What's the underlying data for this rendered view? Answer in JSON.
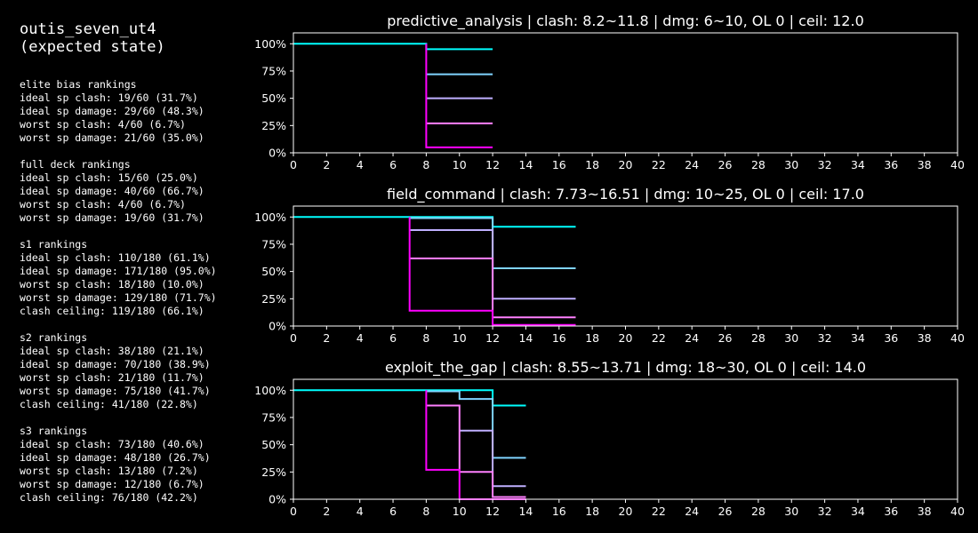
{
  "header": {
    "title_line1": "outis_seven_ut4",
    "title_line2": "(expected state)"
  },
  "stats": [
    {
      "heading": "elite bias rankings",
      "lines": [
        "ideal sp clash: 19/60 (31.7%)",
        "ideal sp damage: 29/60 (48.3%)",
        "worst sp clash: 4/60 (6.7%)",
        "worst sp damage: 21/60 (35.0%)"
      ]
    },
    {
      "heading": "full deck rankings",
      "lines": [
        "ideal sp clash: 15/60 (25.0%)",
        "ideal sp damage: 40/60 (66.7%)",
        "worst sp clash: 4/60 (6.7%)",
        "worst sp damage: 19/60 (31.7%)"
      ]
    },
    {
      "heading": "s1 rankings",
      "lines": [
        "ideal sp clash: 110/180 (61.1%)",
        "ideal sp damage: 171/180 (95.0%)",
        "worst sp clash: 18/180 (10.0%)",
        "worst sp damage: 129/180 (71.7%)",
        "clash ceiling: 119/180 (66.1%)"
      ]
    },
    {
      "heading": "s2 rankings",
      "lines": [
        "ideal sp clash: 38/180 (21.1%)",
        "ideal sp damage: 70/180 (38.9%)",
        "worst sp clash: 21/180 (11.7%)",
        "worst sp damage: 75/180 (41.7%)",
        "clash ceiling: 41/180 (22.8%)"
      ]
    },
    {
      "heading": "s3 rankings",
      "lines": [
        "ideal sp clash: 73/180 (40.6%)",
        "ideal sp damage: 48/180 (26.7%)",
        "worst sp clash: 13/180 (7.2%)",
        "worst sp damage: 12/180 (6.7%)",
        "clash ceiling: 76/180 (42.2%)"
      ]
    }
  ],
  "colors": {
    "series": [
      "#00ffff",
      "#80d4ff",
      "#c0b0ff",
      "#ff80ff",
      "#ff00ff"
    ],
    "background": "#000000",
    "foreground": "#ffffff"
  },
  "chart_data": [
    {
      "type": "line",
      "title": "predictive_analysis | clash: 8.2~11.8 | dmg: 6~10, OL 0 | ceil: 12.0",
      "xlim": [
        0,
        40
      ],
      "ylim": [
        0,
        110
      ],
      "xticks": [
        "0",
        "2",
        "4",
        "6",
        "8",
        "10",
        "12",
        "14",
        "16",
        "18",
        "20",
        "22",
        "24",
        "26",
        "28",
        "30",
        "32",
        "34",
        "36",
        "38",
        "40"
      ],
      "yticks": [
        "0%",
        "25%",
        "50%",
        "75%",
        "100%"
      ],
      "ytick_values": [
        0,
        25,
        50,
        75,
        100
      ],
      "grid": false,
      "series": [
        {
          "x": [
            0,
            8,
            8,
            12
          ],
          "y": [
            100,
            100,
            95,
            95
          ]
        },
        {
          "x": [
            8,
            12
          ],
          "y": [
            72,
            72
          ]
        },
        {
          "x": [
            8,
            12
          ],
          "y": [
            50,
            50
          ]
        },
        {
          "x": [
            8,
            12
          ],
          "y": [
            27,
            27
          ]
        },
        {
          "x": [
            8,
            8,
            12
          ],
          "y": [
            100,
            5,
            5
          ]
        }
      ]
    },
    {
      "type": "line",
      "title": "field_command | clash: 7.73~16.51 | dmg: 10~25, OL 0 | ceil: 17.0",
      "xlim": [
        0,
        40
      ],
      "ylim": [
        0,
        110
      ],
      "xticks": [
        "0",
        "2",
        "4",
        "6",
        "8",
        "10",
        "12",
        "14",
        "16",
        "18",
        "20",
        "22",
        "24",
        "26",
        "28",
        "30",
        "32",
        "34",
        "36",
        "38",
        "40"
      ],
      "yticks": [
        "0%",
        "25%",
        "50%",
        "75%",
        "100%"
      ],
      "ytick_values": [
        0,
        25,
        50,
        75,
        100
      ],
      "grid": false,
      "series": [
        {
          "x": [
            0,
            12,
            12,
            17
          ],
          "y": [
            100,
            100,
            91,
            91
          ]
        },
        {
          "x": [
            7,
            12,
            12,
            17
          ],
          "y": [
            99,
            99,
            53,
            53
          ]
        },
        {
          "x": [
            7,
            12,
            12,
            17
          ],
          "y": [
            88,
            88,
            25,
            25
          ]
        },
        {
          "x": [
            7,
            12,
            12,
            17
          ],
          "y": [
            62,
            62,
            8,
            8
          ]
        },
        {
          "x": [
            7,
            7,
            12,
            12,
            17
          ],
          "y": [
            100,
            14,
            14,
            1,
            1
          ]
        }
      ]
    },
    {
      "type": "line",
      "title": "exploit_the_gap | clash: 8.55~13.71 | dmg: 18~30, OL 0 | ceil: 14.0",
      "xlim": [
        0,
        40
      ],
      "ylim": [
        0,
        110
      ],
      "xticks": [
        "0",
        "2",
        "4",
        "6",
        "8",
        "10",
        "12",
        "14",
        "16",
        "18",
        "20",
        "22",
        "24",
        "26",
        "28",
        "30",
        "32",
        "34",
        "36",
        "38",
        "40"
      ],
      "yticks": [
        "0%",
        "25%",
        "50%",
        "75%",
        "100%"
      ],
      "ytick_values": [
        0,
        25,
        50,
        75,
        100
      ],
      "grid": false,
      "series": [
        {
          "x": [
            0,
            12,
            12,
            14
          ],
          "y": [
            100,
            100,
            86,
            86
          ]
        },
        {
          "x": [
            8,
            10,
            10,
            12,
            12,
            14
          ],
          "y": [
            99,
            99,
            92,
            92,
            38,
            38
          ]
        },
        {
          "x": [
            10,
            12,
            12,
            14
          ],
          "y": [
            63,
            63,
            12,
            12
          ]
        },
        {
          "x": [
            8,
            10,
            10,
            12,
            12,
            14
          ],
          "y": [
            86,
            86,
            25,
            25,
            2,
            2
          ]
        },
        {
          "x": [
            8,
            8,
            10,
            10,
            14
          ],
          "y": [
            100,
            27,
            27,
            0,
            0
          ]
        }
      ]
    }
  ]
}
